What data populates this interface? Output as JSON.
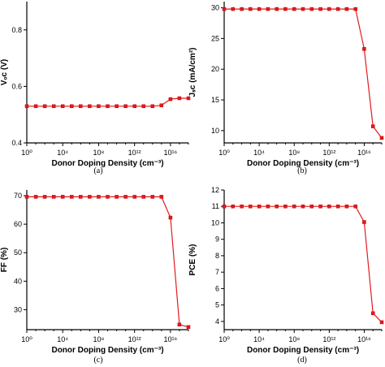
{
  "colors": {
    "series": "#e31a1c",
    "axis": "#000000"
  },
  "chart_data": [
    {
      "type": "line",
      "panel": "(a)",
      "xlabel": "Donor Doping Density (cm⁻³)",
      "ylabel": "Vₒᴄ (V)",
      "ylim": [
        0.4,
        0.9
      ],
      "yticks": [
        0.4,
        0.6,
        0.8
      ],
      "xlim_log10": [
        0,
        18
      ],
      "xticks_log10": [
        0,
        4,
        8,
        12,
        16
      ],
      "xtick_labels": [
        "10⁰",
        "10⁴",
        "10⁸",
        "10¹²",
        "10¹⁶"
      ],
      "x_log10": [
        0,
        1,
        2,
        3,
        4,
        5,
        6,
        7,
        8,
        9,
        10,
        11,
        12,
        13,
        14,
        15,
        16,
        17,
        18
      ],
      "values": [
        0.53,
        0.53,
        0.53,
        0.53,
        0.53,
        0.53,
        0.53,
        0.53,
        0.53,
        0.53,
        0.53,
        0.53,
        0.53,
        0.53,
        0.53,
        0.533,
        0.555,
        0.558,
        0.558
      ]
    },
    {
      "type": "line",
      "panel": "(b)",
      "xlabel": "Donor Doping Density (cm⁻³)",
      "ylabel": "Jₛᴄ (mA/cm²)",
      "ylim": [
        8,
        31
      ],
      "yticks": [
        10,
        15,
        20,
        25,
        30
      ],
      "xlim_log10": [
        0,
        18
      ],
      "xticks_log10": [
        0,
        4,
        8,
        12,
        16
      ],
      "xtick_labels": [
        "10⁰",
        "10⁴",
        "10⁸",
        "10¹²",
        "10¹⁶"
      ],
      "x_log10": [
        0,
        1,
        2,
        3,
        4,
        5,
        6,
        7,
        8,
        9,
        10,
        11,
        12,
        13,
        14,
        15,
        16,
        17,
        18
      ],
      "values": [
        29.8,
        29.8,
        29.8,
        29.8,
        29.8,
        29.8,
        29.8,
        29.8,
        29.8,
        29.8,
        29.8,
        29.8,
        29.8,
        29.8,
        29.8,
        29.8,
        23.3,
        10.7,
        8.8
      ]
    },
    {
      "type": "line",
      "panel": "(c)",
      "xlabel": "Donor Doping Density (cm⁻³)",
      "ylabel": "FF (%)",
      "ylim": [
        23,
        72
      ],
      "yticks": [
        30,
        40,
        50,
        60,
        70
      ],
      "xlim_log10": [
        0,
        18
      ],
      "xticks_log10": [
        0,
        4,
        8,
        12,
        16
      ],
      "xtick_labels": [
        "10⁰",
        "10⁴",
        "10⁸",
        "10¹²",
        "10¹⁶"
      ],
      "x_log10": [
        0,
        1,
        2,
        3,
        4,
        5,
        6,
        7,
        8,
        9,
        10,
        11,
        12,
        13,
        14,
        15,
        16,
        17,
        18
      ],
      "values": [
        69.6,
        69.6,
        69.6,
        69.6,
        69.6,
        69.6,
        69.6,
        69.6,
        69.6,
        69.6,
        69.6,
        69.6,
        69.6,
        69.6,
        69.6,
        69.6,
        62.3,
        24.8,
        23.9
      ]
    },
    {
      "type": "line",
      "panel": "(d)",
      "xlabel": "Donor Doping Density (cm⁻³)",
      "ylabel": "PCE (%)",
      "ylim": [
        3.5,
        12
      ],
      "yticks": [
        4,
        5,
        6,
        7,
        8,
        9,
        10,
        11,
        12
      ],
      "xlim_log10": [
        0,
        18
      ],
      "xticks_log10": [
        0,
        4,
        8,
        12,
        16
      ],
      "xtick_labels": [
        "10⁰",
        "10⁴",
        "10⁸",
        "10¹²",
        "10¹⁶"
      ],
      "x_log10": [
        0,
        1,
        2,
        3,
        4,
        5,
        6,
        7,
        8,
        9,
        10,
        11,
        12,
        13,
        14,
        15,
        16,
        17,
        18
      ],
      "values": [
        11.0,
        11.0,
        11.0,
        11.0,
        11.0,
        11.0,
        11.0,
        11.0,
        11.0,
        11.0,
        11.0,
        11.0,
        11.0,
        11.0,
        11.0,
        11.0,
        10.05,
        4.5,
        3.95
      ]
    }
  ]
}
